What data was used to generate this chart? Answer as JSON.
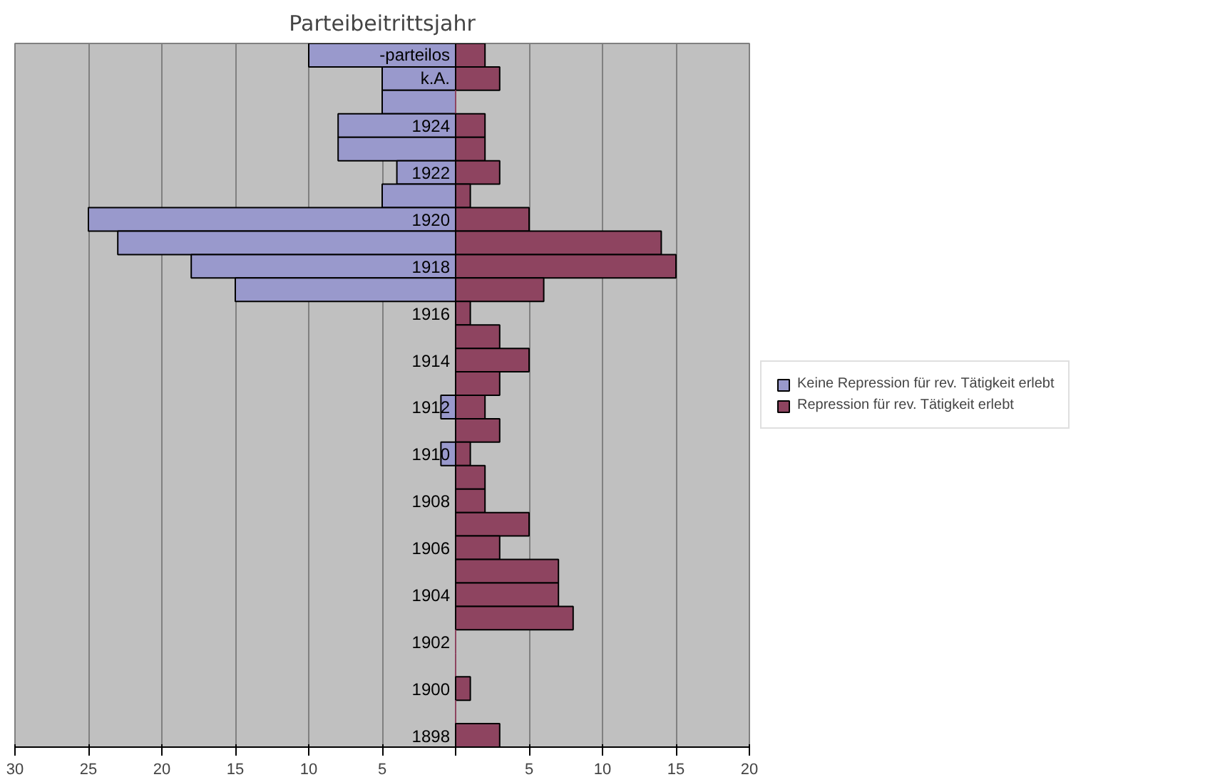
{
  "chart_data": {
    "type": "bar",
    "orientation": "horizontal",
    "title": "Parteibeitrittsjahr",
    "categories": [
      "-parteilos",
      "k.A.",
      null,
      "1924",
      null,
      "1922",
      null,
      "1920",
      null,
      "1918",
      null,
      "1916",
      null,
      "1914",
      null,
      "1912",
      null,
      "1910",
      null,
      "1908",
      null,
      "1906",
      null,
      "1904",
      null,
      "1902",
      null,
      "1900",
      null,
      "1898"
    ],
    "series": [
      {
        "name": "Keine Repression für rev. Tätigkeit erlebt",
        "color": "#9999cc",
        "values": [
          -10,
          -5,
          -5,
          -8,
          -8,
          -4,
          -5,
          -25,
          -23,
          -18,
          -15,
          0,
          0,
          0,
          0,
          -1,
          0,
          -1,
          0,
          0,
          0,
          0,
          0,
          0,
          0,
          0,
          0,
          0,
          0,
          0
        ]
      },
      {
        "name": "Repression für rev. Tätigkeit erlebt",
        "color": "#8e4460",
        "values": [
          2,
          3,
          0,
          2,
          2,
          3,
          1,
          5,
          14,
          15,
          6,
          1,
          3,
          5,
          3,
          2,
          3,
          1,
          2,
          2,
          5,
          3,
          7,
          7,
          8,
          0,
          0,
          1,
          0,
          3
        ]
      }
    ],
    "xlim": [
      -30,
      20
    ],
    "xticks": [
      {
        "value": -30,
        "label": "30"
      },
      {
        "value": -25,
        "label": "25"
      },
      {
        "value": -20,
        "label": "20"
      },
      {
        "value": -15,
        "label": "15"
      },
      {
        "value": -10,
        "label": "10"
      },
      {
        "value": -5,
        "label": "5"
      },
      {
        "value": 0,
        "label": null
      },
      5,
      10,
      15,
      20
    ],
    "grid": "x",
    "legend": "right"
  }
}
